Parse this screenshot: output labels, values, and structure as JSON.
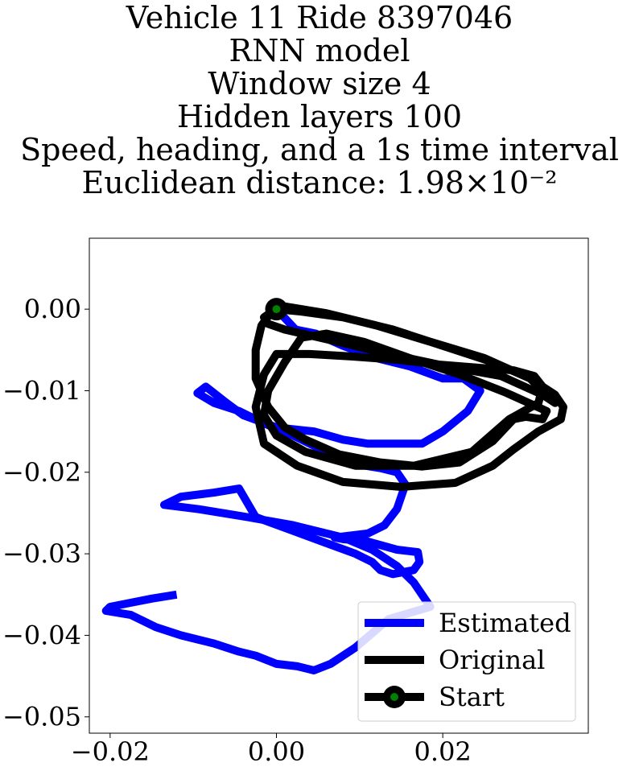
{
  "title_lines": [
    "Vehicle 11 Ride 8397046",
    "RNN model",
    "Window size 4",
    "Hidden layers 100",
    "Speed, heading, and a 1s time interval",
    "Euclidean distance: 1.98×10⁻²"
  ],
  "chart_data": {
    "type": "line",
    "title": "Vehicle 11 Ride 8397046\nRNN model\nWindow size 4\nHidden layers 100\nSpeed, heading, and a 1s time interval\nEuclidean distance: 1.98×10⁻²",
    "xlabel": "",
    "ylabel": "",
    "xlim": [
      -0.0225,
      0.0375
    ],
    "ylim": [
      -0.052,
      0.0087
    ],
    "xticks": [
      -0.02,
      0.0,
      0.02
    ],
    "xtick_labels": [
      "−0.02",
      "0.00",
      "0.02"
    ],
    "yticks": [
      0.0,
      -0.01,
      -0.02,
      -0.03,
      -0.04,
      -0.05
    ],
    "ytick_labels": [
      "0.00",
      "−0.01",
      "−0.02",
      "−0.03",
      "−0.04",
      "−0.05"
    ],
    "grid": false,
    "legend_position": "lower right",
    "series": [
      {
        "name": "Estimated",
        "color": "#0000ff",
        "x": [
          0.0,
          0.0023,
          0.0047,
          0.008,
          0.012,
          0.016,
          0.02,
          0.0225,
          0.0245,
          0.023,
          0.02,
          0.0175,
          0.0135,
          0.011,
          0.008,
          0.0045,
          0.0,
          -0.004,
          -0.006,
          -0.0085,
          -0.0095,
          -0.0075,
          -0.0045,
          -0.0015,
          0.002,
          0.006,
          0.0095,
          0.0125,
          0.0145,
          0.0155,
          0.0145,
          0.013,
          0.011,
          0.007,
          0.008,
          0.011,
          0.0145,
          0.017,
          0.0172,
          0.0165,
          0.014,
          0.0125,
          0.0115,
          0.0095,
          0.0055,
          0.0015,
          -0.0025,
          -0.0045,
          -0.0075,
          -0.0115,
          -0.0135,
          -0.0095,
          -0.0035,
          0.002,
          0.008,
          0.0115,
          0.0145,
          0.0165,
          0.0185,
          0.0135,
          0.0095,
          0.0065,
          0.0045,
          0.0025,
          0.0,
          -0.0025,
          -0.0045,
          -0.0075,
          -0.0095,
          -0.0115,
          -0.0145,
          -0.0175,
          -0.0205,
          -0.02,
          -0.0175,
          -0.015,
          -0.012
        ],
        "y": [
          0.0,
          -0.0025,
          -0.003,
          -0.0045,
          -0.006,
          -0.007,
          -0.0085,
          -0.0085,
          -0.01,
          -0.0125,
          -0.015,
          -0.0165,
          -0.0165,
          -0.0165,
          -0.016,
          -0.015,
          -0.0145,
          -0.013,
          -0.0115,
          -0.0095,
          -0.0103,
          -0.0115,
          -0.0125,
          -0.014,
          -0.0155,
          -0.0175,
          -0.019,
          -0.0195,
          -0.02,
          -0.0215,
          -0.0245,
          -0.0265,
          -0.0275,
          -0.028,
          -0.0282,
          -0.0285,
          -0.0295,
          -0.0298,
          -0.031,
          -0.032,
          -0.0325,
          -0.032,
          -0.031,
          -0.03,
          -0.0285,
          -0.027,
          -0.0255,
          -0.022,
          -0.0225,
          -0.023,
          -0.024,
          -0.0245,
          -0.0255,
          -0.0265,
          -0.028,
          -0.0295,
          -0.0315,
          -0.0335,
          -0.0365,
          -0.038,
          -0.0415,
          -0.0435,
          -0.0443,
          -0.0438,
          -0.0435,
          -0.0425,
          -0.042,
          -0.041,
          -0.0405,
          -0.04,
          -0.039,
          -0.0375,
          -0.037,
          -0.0365,
          -0.036,
          -0.0355,
          -0.035
        ]
      },
      {
        "name": "Original",
        "color": "#000000",
        "x": [
          0.0,
          0.003,
          0.008,
          0.014,
          0.02,
          0.026,
          0.0305,
          0.0335,
          0.0345,
          0.0342,
          0.0315,
          0.0285,
          0.026,
          0.0215,
          0.015,
          0.008,
          0.0025,
          -0.0015,
          -0.0025,
          -0.0015,
          0.0,
          0.004,
          0.009,
          0.0145,
          0.0195,
          0.0245,
          0.0285,
          0.031,
          0.032,
          0.0315,
          0.028,
          0.0235,
          0.0165,
          0.0095,
          0.0035,
          0.0,
          -0.0015,
          -0.001,
          0.001,
          0.003,
          0.006,
          0.0105,
          0.016,
          0.022,
          0.0275,
          0.0325,
          0.032,
          0.03,
          0.0285,
          0.026,
          0.022,
          0.0175,
          0.0125,
          0.0075,
          0.0035,
          0.001,
          -0.001,
          -0.0025,
          -0.0025,
          -0.0018,
          0.0,
          0.006,
          0.012,
          0.0185,
          0.025,
          0.0305,
          0.0335,
          0.032,
          0.027,
          0.0205,
          0.0135,
          0.0065,
          0.001,
          -0.001,
          -0.0015,
          -0.0005,
          0.0
        ],
        "y": [
          0.0,
          -0.0003,
          -0.001,
          -0.0025,
          -0.0045,
          -0.0065,
          -0.0085,
          -0.0105,
          -0.012,
          -0.0135,
          -0.015,
          -0.0172,
          -0.0192,
          -0.0213,
          -0.0218,
          -0.0212,
          -0.0192,
          -0.0165,
          -0.012,
          -0.008,
          -0.0055,
          -0.0055,
          -0.0058,
          -0.0062,
          -0.0068,
          -0.0072,
          -0.0075,
          -0.0082,
          -0.0095,
          -0.0115,
          -0.0135,
          -0.0175,
          -0.0192,
          -0.0192,
          -0.0175,
          -0.0155,
          -0.013,
          -0.01,
          -0.0065,
          -0.0035,
          -0.003,
          -0.004,
          -0.006,
          -0.008,
          -0.0102,
          -0.0125,
          -0.0135,
          -0.0132,
          -0.0135,
          -0.0162,
          -0.0188,
          -0.0193,
          -0.0188,
          -0.0178,
          -0.016,
          -0.0145,
          -0.012,
          -0.0085,
          -0.005,
          -0.002,
          0.0005,
          -0.0005,
          -0.002,
          -0.004,
          -0.006,
          -0.0085,
          -0.0115,
          -0.0105,
          -0.0082,
          -0.007,
          -0.0055,
          -0.0038,
          -0.0025,
          -0.0018,
          -0.001,
          -0.0003,
          0.0
        ]
      },
      {
        "name": "Start",
        "color": "#000000",
        "marker_face": "#008000",
        "x": [
          0.0
        ],
        "y": [
          0.0
        ]
      }
    ]
  }
}
